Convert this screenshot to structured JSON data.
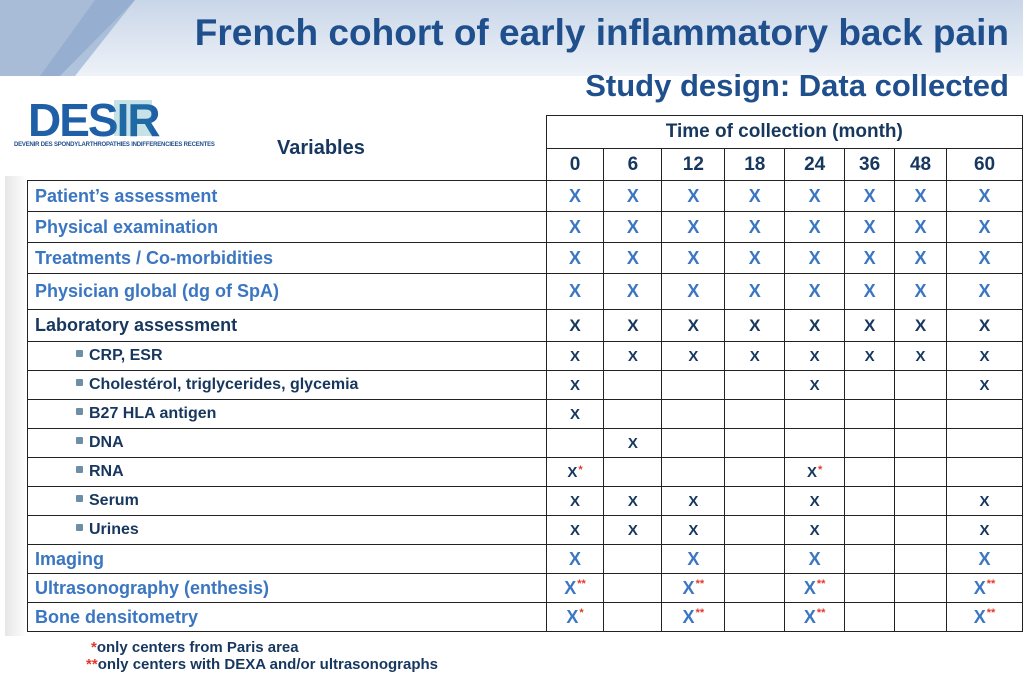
{
  "title": "French cohort of early inflammatory back pain",
  "subtitle": "Study design:    Data collected",
  "logo": {
    "name": "DESIR",
    "tagline": "DEVENIR DES SPONDYLARTHROPATHIES INDIFFERENCIEES RECENTES"
  },
  "variables_label": "Variables",
  "time_header": "Time of collection (month)",
  "months": [
    "0",
    "6",
    "12",
    "18",
    "24",
    "36",
    "48",
    "60"
  ],
  "rows": [
    {
      "label": "Patient’s assessment",
      "style": "blue",
      "cells": [
        "X",
        "X",
        "X",
        "X",
        "X",
        "X",
        "X",
        "X"
      ],
      "marks": [
        "",
        "",
        "",
        "",
        "",
        "",
        "",
        ""
      ]
    },
    {
      "label": "Physical examination",
      "style": "blue",
      "cells": [
        "X",
        "X",
        "X",
        "X",
        "X",
        "X",
        "X",
        "X"
      ],
      "marks": [
        "",
        "",
        "",
        "",
        "",
        "",
        "",
        ""
      ]
    },
    {
      "label": "Treatments / Co-morbidities",
      "style": "blue",
      "cells": [
        "X",
        "X",
        "X",
        "X",
        "X",
        "X",
        "X",
        "X"
      ],
      "marks": [
        "",
        "",
        "",
        "",
        "",
        "",
        "",
        ""
      ]
    },
    {
      "label": "Physician global (dg of SpA)",
      "style": "blue",
      "cells": [
        "X",
        "X",
        "X",
        "X",
        "X",
        "X",
        "X",
        "X"
      ],
      "marks": [
        "",
        "",
        "",
        "",
        "",
        "",
        "",
        ""
      ]
    },
    {
      "label": "Laboratory assessment",
      "style": "dark",
      "cells": [
        "X",
        "X",
        "X",
        "X",
        "X",
        "X",
        "X",
        "X"
      ],
      "marks": [
        "",
        "",
        "",
        "",
        "",
        "",
        "",
        ""
      ]
    },
    {
      "label": "CRP, ESR",
      "style": "sub",
      "cells": [
        "X",
        "X",
        "X",
        "X",
        "X",
        "X",
        "X",
        "X"
      ],
      "marks": [
        "",
        "",
        "",
        "",
        "",
        "",
        "",
        ""
      ]
    },
    {
      "label": "Cholestérol, triglycerides, glycemia",
      "style": "sub",
      "cells": [
        "X",
        "",
        "",
        "",
        "X",
        "",
        "",
        "X"
      ],
      "marks": [
        "",
        "",
        "",
        "",
        "",
        "",
        "",
        ""
      ]
    },
    {
      "label": "B27 HLA antigen",
      "style": "sub",
      "cells": [
        "X",
        "",
        "",
        "",
        "",
        "",
        "",
        ""
      ],
      "marks": [
        "",
        "",
        "",
        "",
        "",
        "",
        "",
        ""
      ]
    },
    {
      "label": "DNA",
      "style": "sub",
      "cells": [
        "",
        "X",
        "",
        "",
        "",
        "",
        "",
        ""
      ],
      "marks": [
        "",
        "",
        "",
        "",
        "",
        "",
        "",
        ""
      ]
    },
    {
      "label": "RNA",
      "style": "sub",
      "cells": [
        "X",
        "",
        "",
        "",
        "X",
        "",
        "",
        ""
      ],
      "marks": [
        "*",
        "",
        "",
        "",
        "*",
        "",
        "",
        ""
      ]
    },
    {
      "label": "Serum",
      "style": "sub",
      "cells": [
        "X",
        "X",
        "X",
        "",
        "X",
        "",
        "",
        "X"
      ],
      "marks": [
        "",
        "",
        "",
        "",
        "",
        "",
        "",
        ""
      ]
    },
    {
      "label": "Urines",
      "style": "sub",
      "cells": [
        "X",
        "X",
        "X",
        "",
        "X",
        "",
        "",
        "X"
      ],
      "marks": [
        "",
        "",
        "",
        "",
        "",
        "",
        "",
        ""
      ]
    },
    {
      "label": "Imaging",
      "style": "blue",
      "cells": [
        "X",
        "",
        "X",
        "",
        "X",
        "",
        "",
        "X"
      ],
      "marks": [
        "",
        "",
        "",
        "",
        "",
        "",
        "",
        ""
      ]
    },
    {
      "label": "Ultrasonography (enthesis)",
      "style": "blue",
      "cells": [
        "X",
        "",
        "X",
        "",
        "X",
        "",
        "",
        "X"
      ],
      "marks": [
        "**",
        "",
        "**",
        "",
        "**",
        "",
        "",
        "**"
      ]
    },
    {
      "label": "Bone densitometry",
      "style": "blue",
      "cells": [
        "X",
        "",
        "X",
        "",
        "X",
        "",
        "",
        "X"
      ],
      "marks": [
        "*",
        "",
        "**",
        "",
        "**",
        "",
        "",
        "**"
      ]
    }
  ],
  "footnotes": [
    {
      "mark": "*",
      "text": "only centers from Paris area"
    },
    {
      "mark": "**",
      "text": "only centers with DEXA and/or ultrasonographs"
    }
  ],
  "colors": {
    "title": "#1f4f8c",
    "blue_rows": "#3b76c2",
    "dark_rows": "#17375e",
    "marks": "#e23a2a"
  }
}
